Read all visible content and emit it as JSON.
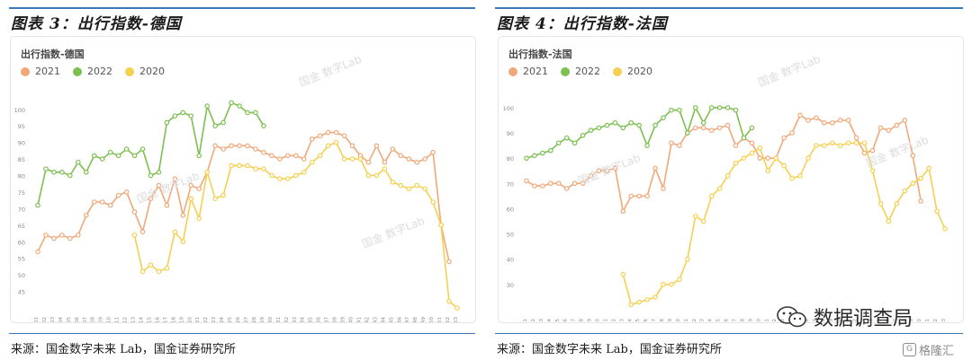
{
  "panels": [
    {
      "title": "图表 3：出行指数-德国",
      "inner_title": "出行指数-德国",
      "source": "来源：国金数字未来 Lab，国金证券研究所",
      "watermark": "国金 数字Lab"
    },
    {
      "title": "图表 4：出行指数-法国",
      "inner_title": "出行指数-法国",
      "source": "来源：国金数字未来 Lab，国金证券研究所",
      "watermark": "国金 数字Lab"
    }
  ],
  "badge": {
    "text": "数据调查局",
    "icon": "wechat-icon"
  },
  "gelonghui": {
    "text": "格隆汇",
    "icon": "g-logo-icon"
  },
  "colors": {
    "2021": "#f0a878",
    "2022": "#7cc050",
    "2020": "#f5d050",
    "accent": "#3a78b8"
  },
  "chart_data": [
    {
      "type": "line",
      "title": "出行指数-德国",
      "legend_position": "top-left",
      "grid": false,
      "categories": [
        "01",
        "02",
        "03",
        "04",
        "05",
        "06",
        "07",
        "08",
        "09",
        "10",
        "11",
        "12",
        "13",
        "14",
        "15",
        "16",
        "17",
        "18",
        "19",
        "20",
        "21",
        "22",
        "23",
        "24",
        "25",
        "26",
        "27",
        "28",
        "29",
        "30",
        "31",
        "32",
        "33",
        "34",
        "35",
        "36",
        "37",
        "38",
        "39",
        "40",
        "41",
        "42",
        "43",
        "44",
        "45",
        "46",
        "47",
        "48",
        "49",
        "50",
        "51",
        "52",
        "53"
      ],
      "y_ticks": [
        45,
        50,
        55,
        60,
        65,
        70,
        75,
        80,
        85,
        90,
        95,
        100
      ],
      "ylim": [
        40,
        104
      ],
      "series": [
        {
          "name": "2021",
          "values": [
            57,
            62,
            61,
            62,
            61,
            62,
            68,
            72,
            72,
            71,
            74,
            75,
            69,
            63,
            73,
            77,
            71,
            79,
            68,
            77,
            76,
            81,
            89,
            88,
            89,
            89,
            89,
            88,
            87,
            86,
            85,
            86,
            86,
            85,
            91,
            92,
            93,
            93,
            92,
            89,
            86,
            84,
            89,
            84,
            88,
            86,
            85,
            84,
            85,
            87,
            65,
            54,
            null
          ]
        },
        {
          "name": "2022",
          "values": [
            71,
            82,
            81,
            81,
            80,
            84,
            81,
            86,
            85,
            87,
            86,
            88,
            86,
            88,
            80,
            81,
            96,
            98,
            99,
            98,
            86,
            101,
            95,
            96,
            102,
            101,
            99,
            99,
            95,
            null,
            null,
            null,
            null,
            null,
            null,
            null,
            null,
            null,
            null,
            null,
            null,
            null,
            null,
            null,
            null,
            null,
            null,
            null,
            null,
            null,
            null,
            null,
            null
          ]
        },
        {
          "name": "2020",
          "values": [
            null,
            null,
            null,
            null,
            null,
            null,
            null,
            null,
            null,
            null,
            null,
            null,
            62,
            51,
            53,
            51,
            52,
            63,
            60,
            73,
            67,
            81,
            73,
            74,
            83,
            83,
            83,
            82,
            82,
            80,
            79,
            79,
            80,
            81,
            84,
            86,
            89,
            90,
            85,
            85,
            85,
            80,
            80,
            82,
            78,
            77,
            76,
            77,
            76,
            72,
            65,
            42,
            40
          ]
        }
      ]
    },
    {
      "type": "line",
      "title": "出行指数-法国",
      "legend_position": "top-left",
      "grid": false,
      "categories": [
        "01",
        "02",
        "03",
        "04",
        "05",
        "06",
        "07",
        "08",
        "09",
        "10",
        "11",
        "12",
        "13",
        "14",
        "15",
        "16",
        "17",
        "18",
        "19",
        "20",
        "21",
        "22",
        "23",
        "24",
        "25",
        "26",
        "27",
        "28",
        "29",
        "30",
        "31",
        "32",
        "33",
        "34",
        "35",
        "36",
        "37",
        "38",
        "39",
        "40",
        "41",
        "42",
        "43",
        "44",
        "45",
        "46",
        "47",
        "48",
        "49",
        "50",
        "51",
        "52",
        "53"
      ],
      "y_ticks": [
        30,
        40,
        50,
        60,
        70,
        80,
        90,
        100
      ],
      "ylim": [
        20,
        106
      ],
      "series": [
        {
          "name": "2021",
          "values": [
            71,
            69,
            69,
            70,
            70,
            68,
            70,
            70,
            73,
            75,
            75,
            76,
            59,
            65,
            65,
            65,
            76,
            68,
            86,
            85,
            90,
            92,
            92,
            91,
            92,
            93,
            85,
            88,
            86,
            80,
            80,
            80,
            88,
            90,
            97,
            95,
            96,
            94,
            94,
            95,
            95,
            88,
            82,
            83,
            92,
            91,
            93,
            95,
            81,
            63,
            null,
            null,
            null
          ]
        },
        {
          "name": "2022",
          "values": [
            80,
            81,
            82,
            83,
            86,
            88,
            86,
            89,
            91,
            92,
            93,
            94,
            92,
            94,
            93,
            85,
            93,
            96,
            99,
            99,
            90,
            100,
            94,
            100,
            100,
            100,
            99,
            88,
            92,
            null,
            null,
            null,
            null,
            null,
            null,
            null,
            null,
            null,
            null,
            null,
            null,
            null,
            null,
            null,
            null,
            null,
            null,
            null,
            null,
            null,
            null,
            null,
            null
          ]
        },
        {
          "name": "2020",
          "values": [
            null,
            null,
            null,
            null,
            null,
            null,
            null,
            null,
            null,
            null,
            null,
            null,
            34,
            22,
            23,
            24,
            25,
            30,
            30,
            32,
            40,
            57,
            55,
            65,
            68,
            73,
            78,
            80,
            82,
            84,
            75,
            80,
            77,
            72,
            73,
            80,
            85,
            85,
            86,
            85,
            86,
            86,
            86,
            75,
            62,
            55,
            62,
            67,
            70,
            72,
            76,
            59,
            52
          ]
        }
      ]
    }
  ]
}
